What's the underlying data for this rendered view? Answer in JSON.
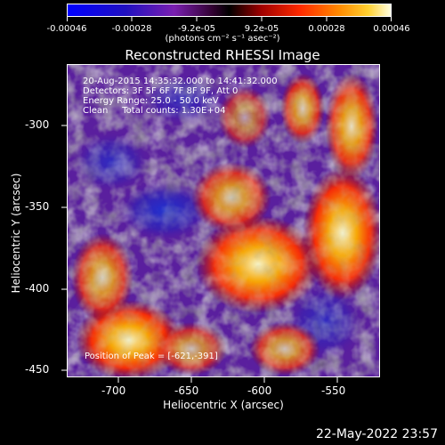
{
  "colorbar": {
    "tick_labels": [
      "-0.00046",
      "-0.00028",
      "-9.2e-05",
      "9.2e-05",
      "0.00028",
      "0.00046"
    ],
    "units": "(photons cm⁻² s⁻¹ asec⁻²)"
  },
  "title": "Reconstructed RHESSI Image",
  "annotations": {
    "line1": "20-Aug-2015 14:35:32.000 to 14:41:32.000",
    "line2": "Detectors: 3F 5F 6F 7F 8F 9F, Att 0",
    "line3": "Energy Range: 25.0 - 50.0 keV",
    "line4": "Clean     Total counts: 1.30E+04",
    "peak": "Position of Peak = [-621,-391]"
  },
  "axes": {
    "xlabel": "Heliocentric X (arcsec)",
    "ylabel": "Heliocentric Y (arcsec)",
    "xticks": [
      "-700",
      "-650",
      "-600",
      "-550"
    ],
    "yticks": [
      "-300",
      "-350",
      "-400",
      "-450"
    ]
  },
  "footer_date": "22-May-2022 23:57"
}
